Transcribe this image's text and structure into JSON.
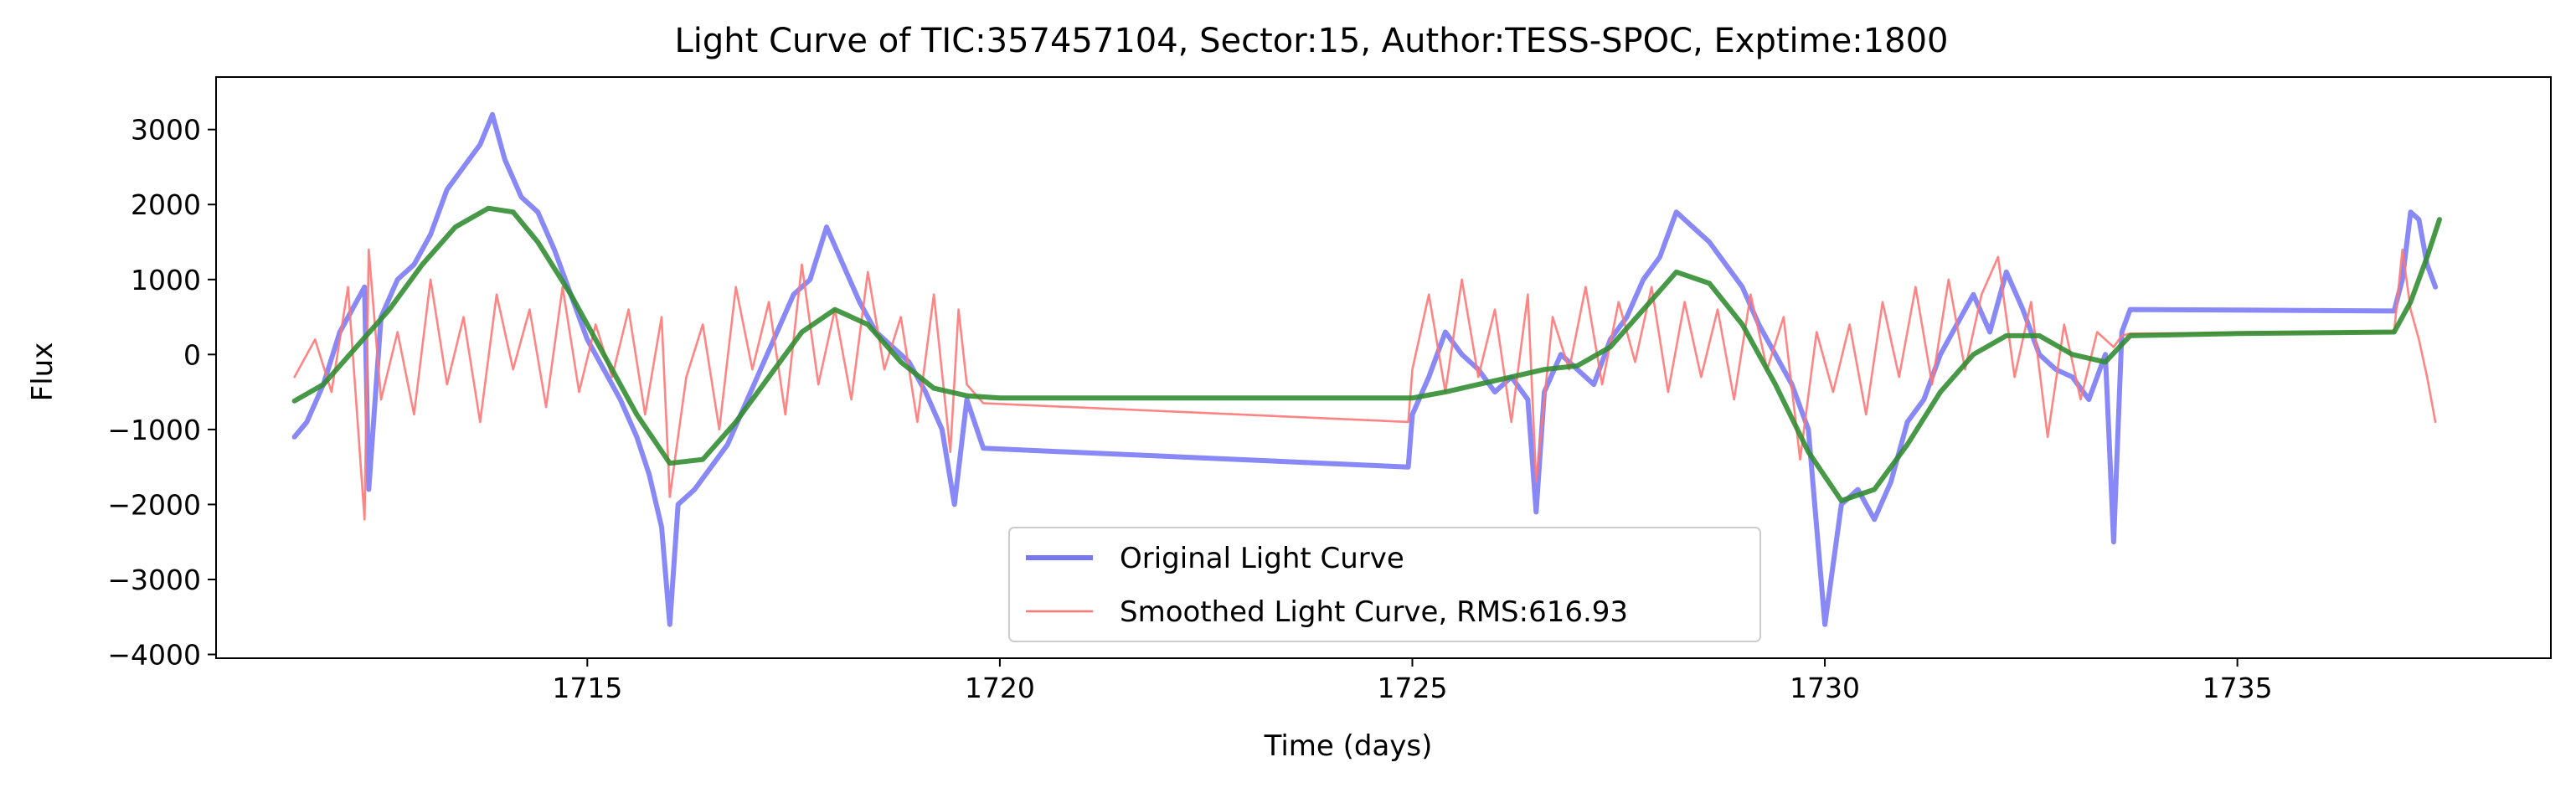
{
  "chart_data": {
    "type": "line",
    "title": "Light Curve of TIC:357457104, Sector:15, Author:TESS-SPOC, Exptime:1800",
    "xlabel": "Time (days)",
    "ylabel": "Flux",
    "xlim": [
      1710.5,
      1738.8
    ],
    "ylim": [
      -4050,
      3700
    ],
    "xticks": [
      1715,
      1720,
      1725,
      1730,
      1735
    ],
    "xtick_labels": [
      "1715",
      "1720",
      "1725",
      "1730",
      "1735"
    ],
    "yticks": [
      3000,
      2000,
      1000,
      0,
      -1000,
      -2000,
      -3000,
      -4000
    ],
    "ytick_labels": [
      "3000",
      "2000",
      "1000",
      "0",
      "−1000",
      "−2000",
      "−3000",
      "−4000"
    ],
    "grid": false,
    "legend_position": "lower-center",
    "series": [
      {
        "name": "Original Light Curve",
        "color": "#7777f5",
        "style": "thick",
        "x": [
          1711.45,
          1711.6,
          1711.8,
          1712.0,
          1712.15,
          1712.3,
          1712.35,
          1712.5,
          1712.7,
          1712.9,
          1713.1,
          1713.3,
          1713.5,
          1713.7,
          1713.85,
          1714.0,
          1714.2,
          1714.4,
          1714.6,
          1714.8,
          1715.0,
          1715.2,
          1715.4,
          1715.6,
          1715.75,
          1715.9,
          1716.0,
          1716.1,
          1716.3,
          1716.5,
          1716.7,
          1716.9,
          1717.1,
          1717.3,
          1717.5,
          1717.7,
          1717.9,
          1718.1,
          1718.3,
          1718.5,
          1718.7,
          1718.9,
          1719.1,
          1719.3,
          1719.45,
          1719.6,
          1719.8,
          1724.95,
          1725.0,
          1725.2,
          1725.4,
          1725.6,
          1725.8,
          1726.0,
          1726.2,
          1726.4,
          1726.5,
          1726.6,
          1726.8,
          1727.0,
          1727.2,
          1727.4,
          1727.6,
          1727.8,
          1728.0,
          1728.2,
          1728.4,
          1728.6,
          1728.8,
          1729.0,
          1729.2,
          1729.4,
          1729.6,
          1729.8,
          1730.0,
          1730.2,
          1730.4,
          1730.6,
          1730.8,
          1731.0,
          1731.2,
          1731.4,
          1731.6,
          1731.8,
          1732.0,
          1732.2,
          1732.4,
          1732.6,
          1732.8,
          1733.0,
          1733.2,
          1733.4,
          1733.5,
          1733.6,
          1733.7,
          1736.9,
          1737.0,
          1737.1,
          1737.2,
          1737.3,
          1737.4
        ],
        "y": [
          -1100,
          -900,
          -400,
          300,
          600,
          900,
          -1800,
          500,
          1000,
          1200,
          1600,
          2200,
          2500,
          2800,
          3200,
          2600,
          2100,
          1900,
          1400,
          800,
          200,
          -200,
          -600,
          -1100,
          -1600,
          -2300,
          -3600,
          -2000,
          -1800,
          -1500,
          -1200,
          -700,
          -200,
          300,
          800,
          1000,
          1700,
          1200,
          700,
          300,
          100,
          -100,
          -500,
          -1000,
          -2000,
          -600,
          -1250,
          -1500,
          -800,
          -300,
          300,
          0,
          -200,
          -500,
          -300,
          -600,
          -2100,
          -500,
          0,
          -200,
          -400,
          200,
          500,
          1000,
          1300,
          1900,
          1700,
          1500,
          1200,
          900,
          400,
          0,
          -400,
          -1000,
          -3600,
          -2000,
          -1800,
          -2200,
          -1700,
          -900,
          -600,
          0,
          400,
          800,
          300,
          1100,
          600,
          0,
          -200,
          -300,
          -600,
          0,
          -2500,
          300,
          600,
          580,
          1000,
          1900,
          1800,
          1200,
          900
        ]
      },
      {
        "name": "Smoothed Light Curve, RMS:616.93",
        "color": "#ff7777",
        "style": "thin",
        "x": [
          1711.45,
          1711.7,
          1711.9,
          1712.1,
          1712.3,
          1712.35,
          1712.5,
          1712.7,
          1712.9,
          1713.1,
          1713.3,
          1713.5,
          1713.7,
          1713.9,
          1714.1,
          1714.3,
          1714.5,
          1714.7,
          1714.9,
          1715.1,
          1715.3,
          1715.5,
          1715.7,
          1715.9,
          1716.0,
          1716.2,
          1716.4,
          1716.6,
          1716.8,
          1717.0,
          1717.2,
          1717.4,
          1717.6,
          1717.8,
          1718.0,
          1718.2,
          1718.4,
          1718.6,
          1718.8,
          1719.0,
          1719.2,
          1719.4,
          1719.5,
          1719.6,
          1719.8,
          1724.95,
          1725.0,
          1725.2,
          1725.4,
          1725.6,
          1725.8,
          1726.0,
          1726.2,
          1726.4,
          1726.5,
          1726.7,
          1726.9,
          1727.1,
          1727.3,
          1727.5,
          1727.7,
          1727.9,
          1728.1,
          1728.3,
          1728.5,
          1728.7,
          1728.9,
          1729.1,
          1729.3,
          1729.5,
          1729.7,
          1729.9,
          1730.1,
          1730.3,
          1730.5,
          1730.7,
          1730.9,
          1731.1,
          1731.3,
          1731.5,
          1731.7,
          1731.9,
          1732.1,
          1732.3,
          1732.5,
          1732.7,
          1732.9,
          1733.1,
          1733.3,
          1733.5,
          1733.6,
          1733.7,
          1736.9,
          1737.0,
          1737.1,
          1737.2,
          1737.3,
          1737.4
        ],
        "y": [
          -300,
          200,
          -500,
          900,
          -2200,
          1400,
          -600,
          300,
          -800,
          1000,
          -400,
          500,
          -900,
          800,
          -200,
          600,
          -700,
          900,
          -500,
          400,
          -300,
          600,
          -800,
          500,
          -1900,
          -300,
          400,
          -1000,
          900,
          -200,
          700,
          -800,
          1200,
          -400,
          600,
          -600,
          1100,
          -200,
          500,
          -900,
          800,
          -1300,
          600,
          -400,
          -650,
          -900,
          -200,
          800,
          -500,
          1000,
          -300,
          600,
          -900,
          800,
          -1700,
          500,
          -200,
          900,
          -400,
          700,
          -100,
          900,
          -500,
          700,
          -300,
          600,
          -600,
          800,
          -200,
          500,
          -1400,
          300,
          -500,
          400,
          -800,
          700,
          -300,
          900,
          -400,
          1000,
          -200,
          800,
          1300,
          -300,
          700,
          -1100,
          400,
          -600,
          300,
          100,
          250,
          280,
          300,
          1400,
          600,
          200,
          -300,
          -900
        ]
      },
      {
        "name": "",
        "color": "#2e8b2e",
        "style": "thick",
        "x": [
          1711.45,
          1711.8,
          1712.2,
          1712.6,
          1713.0,
          1713.4,
          1713.8,
          1714.1,
          1714.4,
          1714.8,
          1715.2,
          1715.6,
          1716.0,
          1716.4,
          1716.8,
          1717.2,
          1717.6,
          1718.0,
          1718.4,
          1718.8,
          1719.2,
          1719.6,
          1720.0,
          1721.0,
          1722.0,
          1723.0,
          1724.0,
          1725.0,
          1725.4,
          1725.8,
          1726.2,
          1726.6,
          1727.0,
          1727.4,
          1727.8,
          1728.2,
          1728.6,
          1729.0,
          1729.4,
          1729.8,
          1730.2,
          1730.6,
          1731.0,
          1731.4,
          1731.8,
          1732.2,
          1732.6,
          1733.0,
          1733.4,
          1733.7,
          1735.0,
          1736.9,
          1737.1,
          1737.3,
          1737.45
        ],
        "y": [
          -620,
          -400,
          100,
          600,
          1200,
          1700,
          1950,
          1900,
          1500,
          800,
          0,
          -800,
          -1450,
          -1400,
          -900,
          -300,
          300,
          600,
          400,
          -100,
          -450,
          -550,
          -580,
          -580,
          -580,
          -580,
          -580,
          -580,
          -500,
          -400,
          -300,
          -200,
          -150,
          100,
          600,
          1100,
          950,
          400,
          -400,
          -1300,
          -1950,
          -1800,
          -1200,
          -500,
          0,
          250,
          250,
          0,
          -100,
          250,
          280,
          300,
          700,
          1300,
          1800
        ]
      }
    ]
  }
}
